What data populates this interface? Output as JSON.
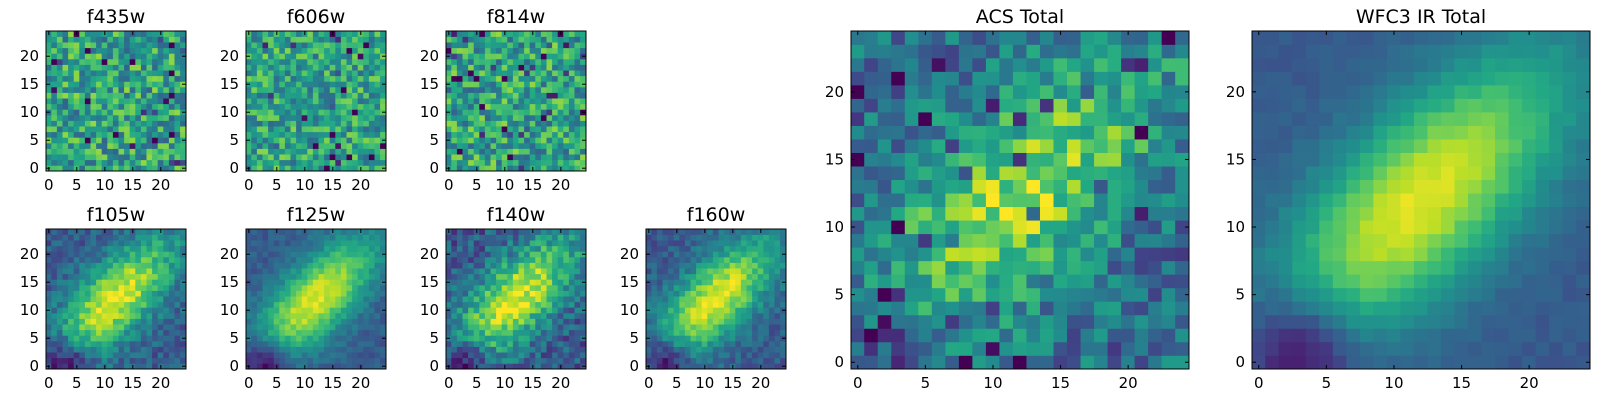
{
  "chart_data": [
    {
      "type": "heatmap",
      "title": "f435w",
      "xlim": [
        -0.5,
        24.5
      ],
      "ylim": [
        -0.5,
        24.5
      ],
      "xticks": [
        0,
        5,
        10,
        15,
        20
      ],
      "yticks": [
        0,
        5,
        10,
        15,
        20
      ],
      "grid": false,
      "colormap": "viridis",
      "structure": "noise",
      "noise": 0.26
    },
    {
      "type": "heatmap",
      "title": "f606w",
      "xlim": [
        -0.5,
        24.5
      ],
      "ylim": [
        -0.5,
        24.5
      ],
      "xticks": [
        0,
        5,
        10,
        15,
        20
      ],
      "yticks": [
        0,
        5,
        10,
        15,
        20
      ],
      "grid": false,
      "colormap": "viridis",
      "structure": "noise",
      "noise": 0.24
    },
    {
      "type": "heatmap",
      "title": "f814w",
      "xlim": [
        -0.5,
        24.5
      ],
      "ylim": [
        -0.5,
        24.5
      ],
      "xticks": [
        0,
        5,
        10,
        15,
        20
      ],
      "yticks": [
        0,
        5,
        10,
        15,
        20
      ],
      "grid": false,
      "colormap": "viridis",
      "structure": "noise",
      "noise": 0.26
    },
    {
      "type": "heatmap",
      "title": "f105w",
      "xlim": [
        -0.5,
        24.5
      ],
      "ylim": [
        -0.5,
        24.5
      ],
      "xticks": [
        0,
        5,
        10,
        15,
        20
      ],
      "yticks": [
        0,
        5,
        10,
        15,
        20
      ],
      "grid": false,
      "colormap": "viridis",
      "structure": "diagonal-blob",
      "noise": 0.12
    },
    {
      "type": "heatmap",
      "title": "f125w",
      "xlim": [
        -0.5,
        24.5
      ],
      "ylim": [
        -0.5,
        24.5
      ],
      "xticks": [
        0,
        5,
        10,
        15,
        20
      ],
      "yticks": [
        0,
        5,
        10,
        15,
        20
      ],
      "grid": false,
      "colormap": "viridis",
      "structure": "diagonal-blob",
      "noise": 0.07
    },
    {
      "type": "heatmap",
      "title": "f140w",
      "xlim": [
        -0.5,
        24.5
      ],
      "ylim": [
        -0.5,
        24.5
      ],
      "xticks": [
        0,
        5,
        10,
        15,
        20
      ],
      "yticks": [
        0,
        5,
        10,
        15,
        20
      ],
      "grid": false,
      "colormap": "viridis",
      "structure": "diagonal-blob",
      "noise": 0.16
    },
    {
      "type": "heatmap",
      "title": "f160w",
      "xlim": [
        -0.5,
        24.5
      ],
      "ylim": [
        -0.5,
        24.5
      ],
      "xticks": [
        0,
        5,
        10,
        15,
        20
      ],
      "yticks": [
        0,
        5,
        10,
        15,
        20
      ],
      "grid": false,
      "colormap": "viridis",
      "structure": "diagonal-blob",
      "noise": 0.1
    },
    {
      "type": "heatmap",
      "title": "ACS Total",
      "xlim": [
        -0.5,
        24.5
      ],
      "ylim": [
        -0.5,
        24.5
      ],
      "xticks": [
        0,
        5,
        10,
        15,
        20
      ],
      "yticks": [
        0,
        5,
        10,
        15,
        20
      ],
      "grid": false,
      "colormap": "viridis",
      "structure": "diagonal-blob-noisy",
      "noise": 0.2
    },
    {
      "type": "heatmap",
      "title": "WFC3 IR Total",
      "xlim": [
        -0.5,
        24.5
      ],
      "ylim": [
        -0.5,
        24.5
      ],
      "xticks": [
        0,
        5,
        10,
        15,
        20
      ],
      "yticks": [
        0,
        5,
        10,
        15,
        20
      ],
      "grid": false,
      "colormap": "viridis",
      "structure": "diagonal-blob",
      "noise": 0.03
    }
  ]
}
